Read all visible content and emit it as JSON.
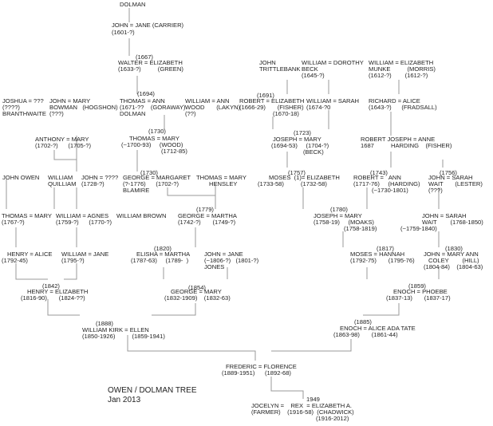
{
  "title": "OWEN / DOLMAN TREE",
  "date": "Jan 2013",
  "line_color": "#999999",
  "text_color": "#222222",
  "labels": [
    "DOLMAN",
    "JOHN = JANE (CARRIER)",
    "(1601-?)",
    "(1667)",
    "WALTER = ELIZABETH",
    "(1633-?)          (GREEN)",
    "JOHN",
    "TRITTLEBANK",
    "WILLIAM = DOROTHY",
    "BECK",
    "(1645-?)",
    "WILLIAM = ELIZABETH",
    "MUNKE          (MORRIS)",
    "(1612-?)        (1612-?)",
    "(1694)",
    "(1691)",
    "JOSHUA = ???",
    "(????)",
    "BRANTHWAITE",
    "JOHN = MARY",
    "BOWMAN   (HOGSHON)",
    "(???)",
    "THOMAS = ANN",
    "(1671-??    (GORAWAY)",
    "DOLMAN",
    "WILLIAM = ANN",
    "WOOD       (LAKYN)",
    "(??)",
    "ROBERT = ELIZABETH",
    "(1666-29)       (FISHER)",
    "(1670-18)",
    "WILLIAM = SARAH",
    "(1674-?0",
    "RICHARD = ALICE",
    "(1643-?)      (FRADSALL)",
    "(1730)",
    "(1723)",
    "THOMAS = MARY",
    "(~1700-93)     (WOOD)",
    "(1712-85)",
    "JOSEPH = MARY",
    "(1694-53)     (1704-?)",
    "(BECK)",
    "ANTHONY = MARY",
    "(1702-?)      (1705-?)",
    "ROBERT JOSEPH = ANNE",
    "1687          HARDING    (FISHER)",
    "(1730)",
    "(1757)",
    "(1743)",
    "(1756)",
    "JOHN OWEN",
    "WILLIAM",
    "QUILLIAM",
    "JOHN = ???? ",
    "(1728-?)",
    "GEORGE = MARGARET",
    "(?-1776)      (1702-?)",
    "BLAMIRE",
    "THOMAS = MARY",
    "HENSLEY",
    "MOSES  (1)= ELIZABETH",
    "(1733-58)          (1732-58)",
    "ROBERT =   ANN",
    "(1717-76)     (HARDING)",
    "(~1730-1801)",
    "JOHN = SARAH",
    "WAIT       (LESTER)",
    "(???)",
    "(1779)",
    "(1780)",
    "THOMAS = MARY",
    "(1767-?)",
    "WILLIAM = AGNES",
    "(1759-?)      (1770-?)",
    "WILLIAM BROWN",
    "GEORGE = MARTHA",
    "(1742-?)       (1749-?)",
    "JOSEPH = MARY",
    "(1758-19)     (MOAKS)",
    "(1758-1819)",
    "JOHN = SARAH",
    "WAIT        (1768-1850)",
    "(~1759-1840)",
    "(1820)",
    "(1817)",
    "(1830)",
    "HENRY = ALICE",
    "(1792-45)",
    "WILLIAM = JANE",
    "(1795-?)",
    "ELISHA = MARTHA",
    "(1787-63)     (1789-  )",
    "JOHN = JANE",
    "(~1806-?)   (1801-?)",
    "JONES",
    "MOSES = HANNAH",
    "(1792-75)       (1795-76)",
    "JOHN = MARY ANN",
    "COLEY        (HILL)",
    "(1804-84)    (1804-63)",
    "(1842)",
    "(1854)",
    "(1859)",
    "HENRY = ELIZABETH",
    "(1816-90)       (1824-??)",
    "GEORGE = MARY",
    "(1832-1909)    (1832-63)",
    "ENOCH = PHOEBE",
    "(1837-13)       (1837-17)",
    "(1888)",
    "(1885)",
    "WILLIAM KIRK = ELLEN",
    "(1850-1926)          (1859-1941)",
    "ENOCH = ALICE ADA TATE",
    "(1863-98)       (1861-44)",
    "FREDERIC = FLORENCE",
    "(1889-1951)      (1892-68)",
    "1949",
    "JOCELYN =    REX  = ELIZABETH A.",
    "(FARMER)    (1916-58)  (CHADWICK)",
    "(1916-2012)"
  ]
}
